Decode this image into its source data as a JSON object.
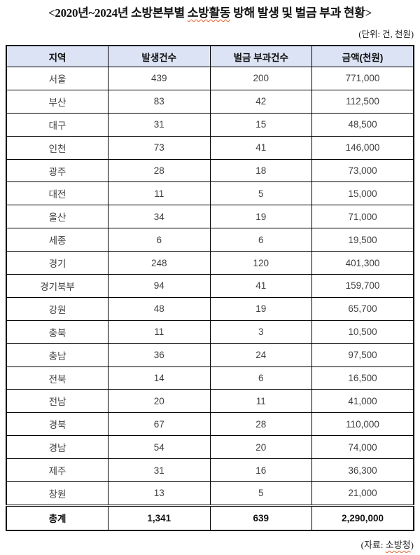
{
  "title": {
    "part1": "<2020년~2024년 소방본부별 ",
    "spellchecked": "소방활동",
    "part2": " 방해 발생 및 벌금 부과 현황>"
  },
  "unit_note": "(단위: 건, 천원)",
  "table": {
    "columns": [
      "지역",
      "발생건수",
      "벌금 부과건수",
      "금액(천원)"
    ],
    "rows": [
      [
        "서울",
        "439",
        "200",
        "771,000"
      ],
      [
        "부산",
        "83",
        "42",
        "112,500"
      ],
      [
        "대구",
        "31",
        "15",
        "48,500"
      ],
      [
        "인천",
        "73",
        "41",
        "146,000"
      ],
      [
        "광주",
        "28",
        "18",
        "73,000"
      ],
      [
        "대전",
        "11",
        "5",
        "15,000"
      ],
      [
        "울산",
        "34",
        "19",
        "71,000"
      ],
      [
        "세종",
        "6",
        "6",
        "19,500"
      ],
      [
        "경기",
        "248",
        "120",
        "401,300"
      ],
      [
        "경기북부",
        "94",
        "41",
        "159,700"
      ],
      [
        "강원",
        "48",
        "19",
        "65,700"
      ],
      [
        "충북",
        "11",
        "3",
        "10,500"
      ],
      [
        "충남",
        "36",
        "24",
        "97,500"
      ],
      [
        "전북",
        "14",
        "6",
        "16,500"
      ],
      [
        "전남",
        "20",
        "11",
        "41,000"
      ],
      [
        "경북",
        "67",
        "28",
        "110,000"
      ],
      [
        "경남",
        "54",
        "20",
        "74,000"
      ],
      [
        "제주",
        "31",
        "16",
        "36,300"
      ],
      [
        "창원",
        "13",
        "5",
        "21,000"
      ]
    ],
    "total": [
      "총계",
      "1,341",
      "639",
      "2,290,000"
    ]
  },
  "source_note": {
    "part1": "(자료: ",
    "spellchecked": "소방청",
    "part2": ")"
  },
  "colors": {
    "header_fill": "#dce3f5",
    "border": "#000000",
    "spellcheck_underline": "#e0602e"
  }
}
